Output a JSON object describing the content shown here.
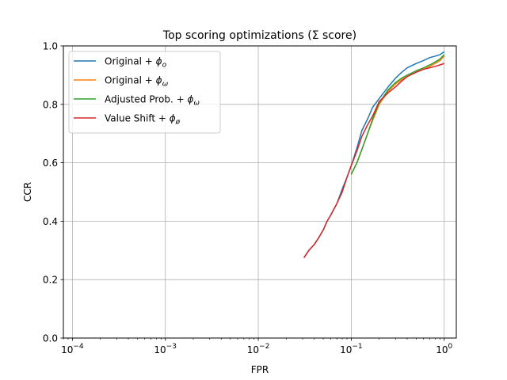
{
  "chart_data": {
    "type": "line",
    "title": "Top scoring optimizations (Σ score)",
    "xlabel": "FPR",
    "ylabel": "CCR",
    "xscale": "log",
    "xlim": [
      8e-05,
      1.35
    ],
    "ylim": [
      0.0,
      1.0
    ],
    "grid": true,
    "legend_position": "top-left",
    "x_ticks": [
      {
        "value": 0.0001,
        "base": "10",
        "exp": "−4"
      },
      {
        "value": 0.001,
        "base": "10",
        "exp": "−3"
      },
      {
        "value": 0.01,
        "base": "10",
        "exp": "−2"
      },
      {
        "value": 0.1,
        "base": "10",
        "exp": "−1"
      },
      {
        "value": 1,
        "base": "10",
        "exp": "0"
      }
    ],
    "y_ticks": [
      "0.0",
      "0.2",
      "0.4",
      "0.6",
      "0.8",
      "1.0"
    ],
    "series": [
      {
        "name": "Original + ",
        "symbol": "ϕ",
        "subscript": "o",
        "color": "#1f77b4",
        "x": [
          0.031,
          0.035,
          0.04,
          0.045,
          0.05,
          0.055,
          0.06,
          0.07,
          0.08,
          0.09,
          0.1,
          0.115,
          0.13,
          0.15,
          0.17,
          0.2,
          0.25,
          0.3,
          0.35,
          0.4,
          0.5,
          0.6,
          0.7,
          0.8,
          0.9,
          1.0
        ],
        "y": [
          0.275,
          0.3,
          0.32,
          0.345,
          0.37,
          0.4,
          0.42,
          0.46,
          0.51,
          0.55,
          0.59,
          0.65,
          0.71,
          0.75,
          0.79,
          0.82,
          0.86,
          0.89,
          0.91,
          0.925,
          0.94,
          0.95,
          0.96,
          0.965,
          0.97,
          0.98
        ]
      },
      {
        "name": "Original + ",
        "symbol": "ϕ",
        "subscript": "ω",
        "color": "#ff7f0e",
        "x": [
          0.1,
          0.115,
          0.13,
          0.15,
          0.17,
          0.2,
          0.25,
          0.3,
          0.35,
          0.4,
          0.5,
          0.6,
          0.7,
          0.8,
          0.9,
          1.0
        ],
        "y": [
          0.56,
          0.6,
          0.645,
          0.7,
          0.745,
          0.8,
          0.845,
          0.87,
          0.885,
          0.895,
          0.91,
          0.92,
          0.93,
          0.94,
          0.95,
          0.965
        ]
      },
      {
        "name": "Adjusted Prob. + ",
        "symbol": "ϕ",
        "subscript": "ω",
        "color": "#2ca02c",
        "x": [
          0.1,
          0.115,
          0.13,
          0.15,
          0.17,
          0.2,
          0.25,
          0.3,
          0.35,
          0.4,
          0.5,
          0.6,
          0.7,
          0.8,
          0.9,
          1.0
        ],
        "y": [
          0.56,
          0.6,
          0.645,
          0.7,
          0.75,
          0.805,
          0.85,
          0.875,
          0.89,
          0.9,
          0.915,
          0.925,
          0.935,
          0.945,
          0.955,
          0.97
        ]
      },
      {
        "name": "Value Shift + ",
        "symbol": "ϕ",
        "subscript": "ø",
        "color": "#d62728",
        "x": [
          0.031,
          0.035,
          0.04,
          0.045,
          0.05,
          0.055,
          0.06,
          0.07,
          0.08,
          0.09,
          0.1,
          0.115,
          0.13,
          0.15,
          0.17,
          0.2,
          0.25,
          0.3,
          0.35,
          0.4,
          0.5,
          0.6,
          0.7,
          0.8,
          0.9,
          1.0
        ],
        "y": [
          0.275,
          0.3,
          0.32,
          0.345,
          0.37,
          0.4,
          0.42,
          0.46,
          0.5,
          0.55,
          0.59,
          0.64,
          0.69,
          0.73,
          0.76,
          0.81,
          0.84,
          0.86,
          0.88,
          0.895,
          0.91,
          0.92,
          0.925,
          0.93,
          0.935,
          0.94
        ]
      }
    ]
  }
}
